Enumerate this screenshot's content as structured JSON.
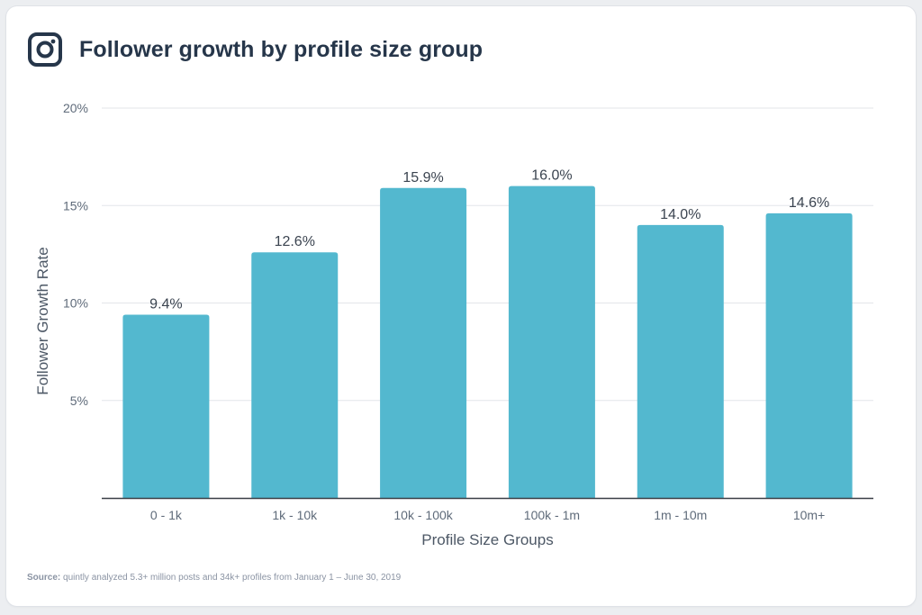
{
  "header": {
    "title": "Follower growth by profile size group",
    "icon": "instagram-icon"
  },
  "colors": {
    "bar": "#53b8cf",
    "grid": "#e3e6ea",
    "axis": "#3a3f47",
    "title": "#26364a",
    "tick": "#5f6b7a"
  },
  "chart_data": {
    "type": "bar",
    "title": "Follower growth by profile size group",
    "xlabel": "Profile Size Groups",
    "ylabel": "Follower Growth Rate",
    "categories": [
      "0 - 1k",
      "1k - 10k",
      "10k - 100k",
      "100k - 1m",
      "1m - 10m",
      "10m+"
    ],
    "values": [
      9.4,
      12.6,
      15.9,
      16.0,
      14.0,
      14.6
    ],
    "value_labels": [
      "9.4%",
      "12.6%",
      "15.9%",
      "16.0%",
      "14.0%",
      "14.6%"
    ],
    "ylim": [
      0,
      20
    ],
    "yticks": [
      5,
      10,
      15,
      20
    ],
    "ytick_labels": [
      "5%",
      "10%",
      "15%",
      "20%"
    ],
    "grid": true,
    "legend": "none"
  },
  "footer": {
    "source_label": "Source:",
    "source_text": " quintly analyzed 5.3+ million posts and 34k+ profiles from January 1 – June 30, 2019"
  }
}
